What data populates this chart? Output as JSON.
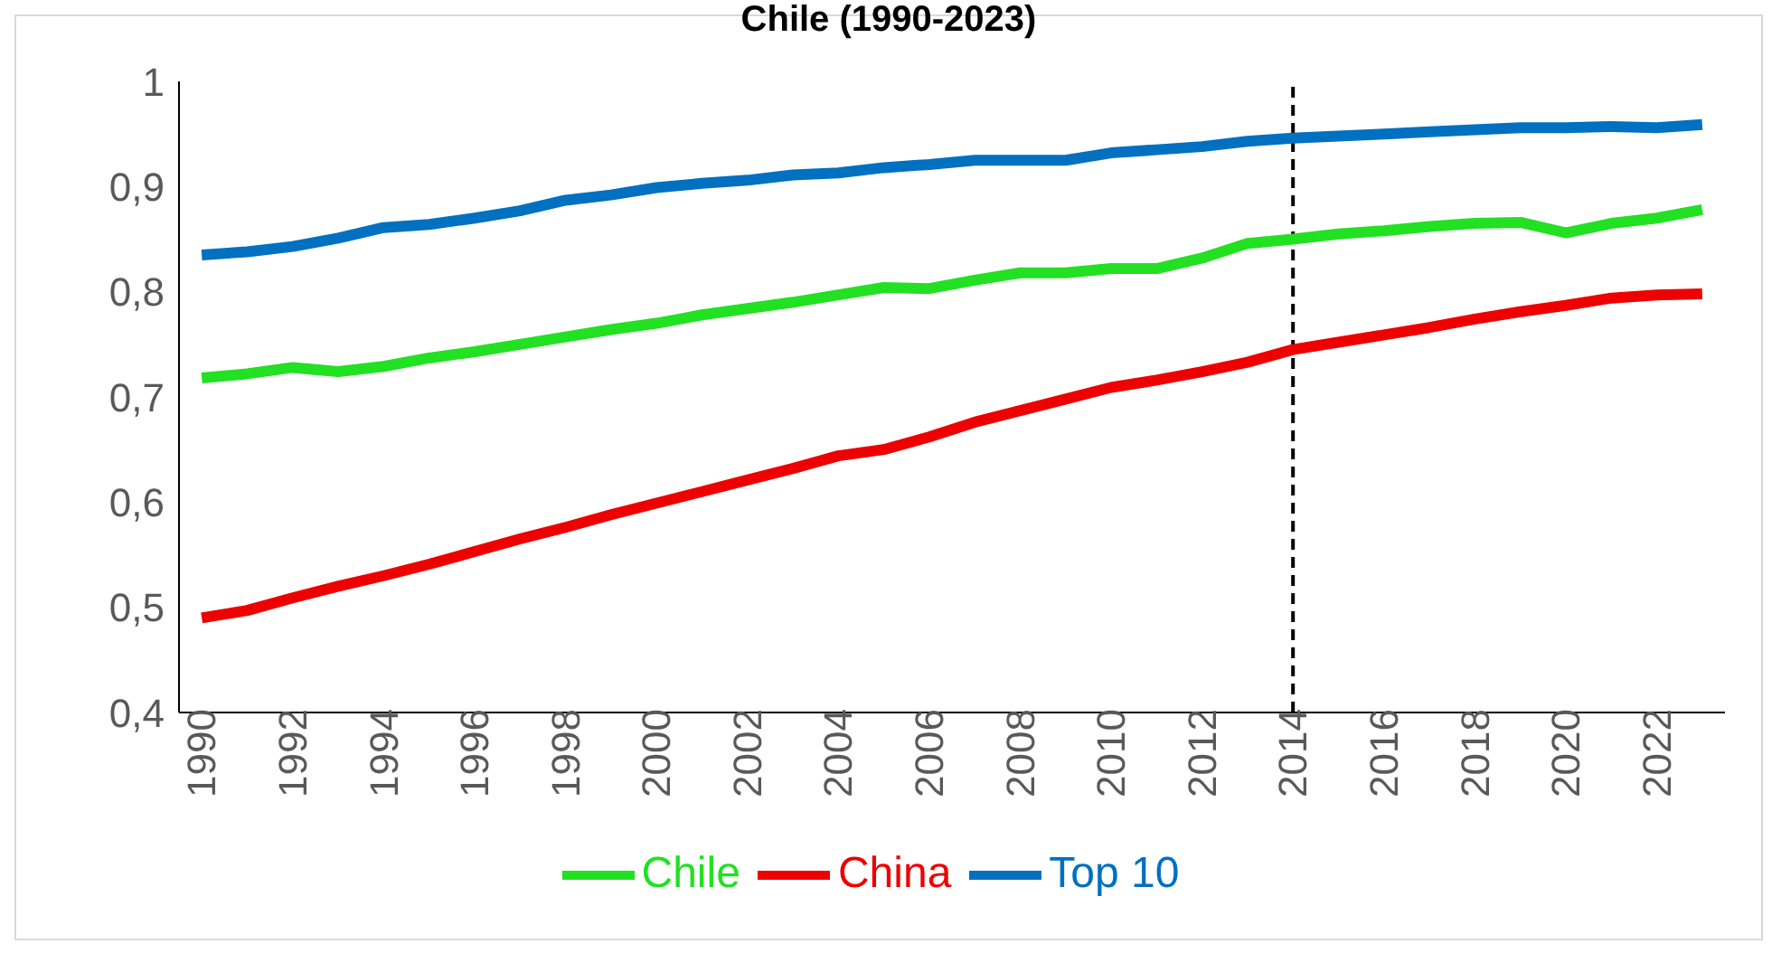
{
  "chart_data": {
    "type": "line",
    "title": "Chile (1990-2023)",
    "x": [
      1990,
      1991,
      1992,
      1993,
      1994,
      1995,
      1996,
      1997,
      1998,
      1999,
      2000,
      2001,
      2002,
      2003,
      2004,
      2005,
      2006,
      2007,
      2008,
      2009,
      2010,
      2011,
      2012,
      2013,
      2014,
      2015,
      2016,
      2017,
      2018,
      2019,
      2020,
      2021,
      2022,
      2023
    ],
    "series": [
      {
        "name": "Top 10",
        "color": "#0070c0",
        "values": [
          0.835,
          0.838,
          0.843,
          0.851,
          0.861,
          0.864,
          0.87,
          0.877,
          0.887,
          0.892,
          0.899,
          0.903,
          0.906,
          0.911,
          0.913,
          0.918,
          0.921,
          0.925,
          0.925,
          0.925,
          0.932,
          0.935,
          0.938,
          0.943,
          0.946,
          0.948,
          0.95,
          0.952,
          0.954,
          0.956,
          0.956,
          0.957,
          0.956,
          0.959
        ]
      },
      {
        "name": "China",
        "color": "#ee0000",
        "values": [
          0.49,
          0.497,
          0.509,
          0.52,
          0.53,
          0.541,
          0.553,
          0.565,
          0.576,
          0.588,
          0.599,
          0.61,
          0.621,
          0.632,
          0.644,
          0.65,
          0.662,
          0.676,
          0.687,
          0.698,
          0.709,
          0.716,
          0.724,
          0.733,
          0.745,
          0.752,
          0.759,
          0.766,
          0.774,
          0.781,
          0.787,
          0.794,
          0.797,
          0.798
        ]
      },
      {
        "name": "Chile",
        "color": "#22e022",
        "values": [
          0.718,
          0.722,
          0.728,
          0.724,
          0.729,
          0.737,
          0.743,
          0.75,
          0.757,
          0.764,
          0.77,
          0.778,
          0.784,
          0.79,
          0.797,
          0.804,
          0.803,
          0.811,
          0.818,
          0.818,
          0.822,
          0.822,
          0.832,
          0.846,
          0.85,
          0.855,
          0.858,
          0.862,
          0.865,
          0.866,
          0.856,
          0.865,
          0.87,
          0.878
        ]
      }
    ],
    "xlim": [
      1989.5,
      2023.5
    ],
    "xticks": [
      1990,
      1992,
      1994,
      1996,
      1998,
      2000,
      2002,
      2004,
      2006,
      2008,
      2010,
      2012,
      2014,
      2016,
      2018,
      2020,
      2022
    ],
    "ylim": [
      0.4,
      1
    ],
    "yticks": [
      {
        "value": 0.4,
        "label": "0,4"
      },
      {
        "value": 0.5,
        "label": "0,5"
      },
      {
        "value": 0.6,
        "label": "0,6"
      },
      {
        "value": 0.7,
        "label": "0,7"
      },
      {
        "value": 0.8,
        "label": "0,8"
      },
      {
        "value": 0.9,
        "label": "0,9"
      },
      1
    ],
    "ref_lines": [
      {
        "axis": "x",
        "value": 2014,
        "color": "#000000",
        "line_style": "dashed"
      }
    ],
    "legend": "bottom",
    "grid": false,
    "marker": "none",
    "line_style": "solid"
  }
}
